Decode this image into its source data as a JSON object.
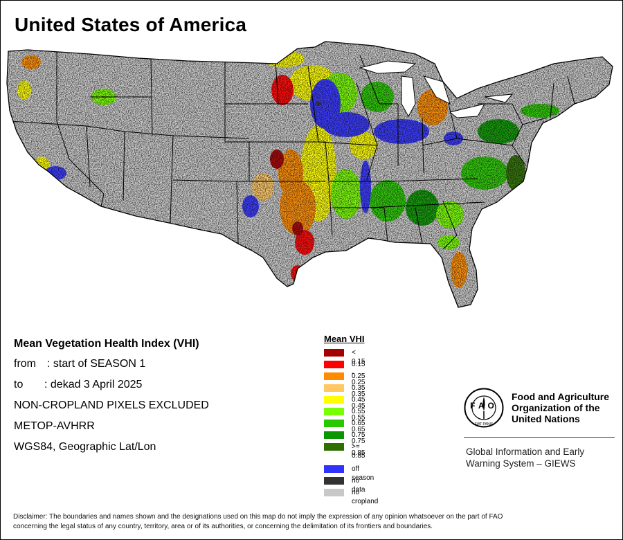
{
  "map_title": "United States of America",
  "info": {
    "heading": "Mean Vegetation Health Index (VHI)",
    "from_label": "from",
    "from_value": ": start of SEASON 1",
    "to_label": "to",
    "to_value": ": dekad 3 April 2025",
    "mask_note": "NON-CROPLAND PIXELS EXCLUDED",
    "sensor": "METOP-AVHRR",
    "projection": "WGS84, Geographic Lat/Lon"
  },
  "legend": {
    "title": "Mean VHI",
    "classes": [
      {
        "label": "< 0.15",
        "color": "#a50000"
      },
      {
        "label": "0.15 - 0.25",
        "color": "#ff0000"
      },
      {
        "label": "0.25 - 0.35",
        "color": "#ff8c00"
      },
      {
        "label": "0.35 - 0.45",
        "color": "#ffc864"
      },
      {
        "label": "0.45 - 0.55",
        "color": "#ffff00"
      },
      {
        "label": "0.55 - 0.65",
        "color": "#78ff00"
      },
      {
        "label": "0.65 - 0.75",
        "color": "#28c800"
      },
      {
        "label": "0.75 - 0.85",
        "color": "#0a9600"
      },
      {
        "label": ">= 0.85",
        "color": "#2d6e00"
      }
    ],
    "special": [
      {
        "label": "off season",
        "color": "#3232ff"
      },
      {
        "label": "no data",
        "color": "#323232"
      },
      {
        "label": "no cropland",
        "color": "#c8c8c8"
      }
    ]
  },
  "logo": {
    "org_line1": "Food and Agriculture",
    "org_line2": "Organization of the",
    "org_line3": "United Nations",
    "emblem_text": "FAO",
    "emblem_motto": "FIAT PANIS",
    "program_line1": "Global Information and Early",
    "program_line2": "Warning System – GIEWS"
  },
  "disclaimer": {
    "line1": "Disclaimer: The boundaries and names shown and the designations used on this map do not imply the expression of any opinion whatsoever on the part of FAO",
    "line2": "concerning the legal status of any country, territory, area or of its authorities, or concerning the delimitation of its frontiers and boundaries."
  },
  "map_layer": {
    "land_color": "#c8c8c8",
    "border_color": "#000000",
    "regions": [
      {
        "name": "drought-southern-plains",
        "dominant_class": "0.15 - 0.25"
      },
      {
        "name": "off-season-corn-belt",
        "dominant_class": "off season"
      },
      {
        "name": "green-eastern-croplands",
        "dominant_class": "0.55 - 0.65"
      }
    ]
  }
}
